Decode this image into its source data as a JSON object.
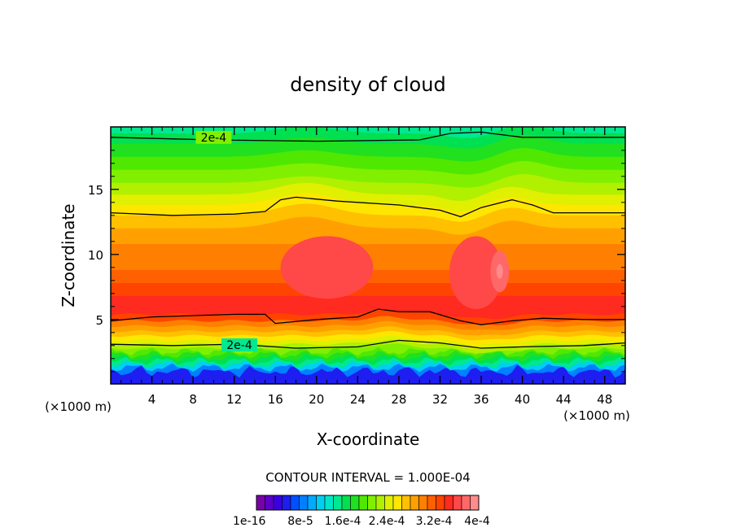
{
  "chart_data": {
    "type": "heatmap",
    "title": "density of cloud",
    "xlabel": "X-coordinate",
    "ylabel": "Z-coordinate",
    "x_unit_left": "(×1000 m)",
    "x_unit_right": "(×1000 m)",
    "xlim": [
      0,
      50
    ],
    "ylim": [
      0.3,
      20
    ],
    "x_ticks": [
      4,
      8,
      12,
      16,
      20,
      24,
      28,
      32,
      36,
      40,
      44,
      48
    ],
    "y_ticks": [
      5,
      10,
      15
    ],
    "contour_interval_text": "CONTOUR INTERVAL = 1.000E-04",
    "contour_labels": [
      "2e-4",
      "2e-4"
    ],
    "colorbar": {
      "tick_labels": [
        "1e-16",
        "8e-5",
        "1.6e-4",
        "2.4e-4",
        "3.2e-4",
        "4e-4"
      ],
      "colors": [
        "#7a00a8",
        "#5a00c8",
        "#3c00e0",
        "#1e1ef0",
        "#0050ff",
        "#0080ff",
        "#00aaff",
        "#00d0f0",
        "#00e6c8",
        "#00e890",
        "#00e050",
        "#20e020",
        "#50e800",
        "#80f000",
        "#b0f000",
        "#e0f000",
        "#ffe600",
        "#ffc000",
        "#ffa000",
        "#ff8000",
        "#ff6000",
        "#ff4400",
        "#ff2a20",
        "#ff4848",
        "#ff6868",
        "#ff8c8c"
      ]
    },
    "levels": [
      0.0,
      1.0,
      1.3,
      1.55,
      1.8,
      2.05,
      2.3,
      2.55,
      2.8,
      3.1,
      3.4,
      3.75,
      4.1,
      4.5,
      4.9,
      5.4,
      6.0,
      6.8,
      7.8,
      8.8,
      10.8,
      12.0,
      13.0,
      13.8,
      14.6,
      15.5,
      16.5,
      17.5,
      18.5,
      19.3,
      20.0
    ],
    "level_value_index": [
      3,
      5,
      7,
      9,
      10,
      11,
      12,
      13,
      14,
      15,
      16,
      17,
      18,
      19,
      21,
      22,
      22,
      21,
      20,
      19,
      18,
      17,
      16,
      15,
      14,
      13,
      12,
      11,
      10,
      9
    ],
    "contour_lines": [
      {
        "label": "2e-4",
        "points": [
          [
            0,
            19.0
          ],
          [
            10,
            18.8
          ],
          [
            20,
            18.7
          ],
          [
            30,
            18.8
          ],
          [
            33,
            19.3
          ],
          [
            36,
            19.4
          ],
          [
            38,
            19.2
          ],
          [
            40,
            19.0
          ],
          [
            50,
            19.0
          ]
        ]
      },
      {
        "label": "",
        "points": [
          [
            0,
            13.2
          ],
          [
            6,
            13.0
          ],
          [
            12,
            13.1
          ],
          [
            15,
            13.3
          ],
          [
            16.5,
            14.2
          ],
          [
            18,
            14.4
          ],
          [
            22,
            14.1
          ],
          [
            28,
            13.8
          ],
          [
            32,
            13.4
          ],
          [
            34,
            12.9
          ],
          [
            36,
            13.6
          ],
          [
            39,
            14.2
          ],
          [
            41,
            13.8
          ],
          [
            43,
            13.2
          ],
          [
            50,
            13.2
          ]
        ]
      },
      {
        "label": "",
        "points": [
          [
            0,
            4.9
          ],
          [
            4,
            5.2
          ],
          [
            8,
            5.3
          ],
          [
            12,
            5.4
          ],
          [
            15,
            5.4
          ],
          [
            16,
            4.7
          ],
          [
            20,
            5.0
          ],
          [
            24,
            5.2
          ],
          [
            26,
            5.8
          ],
          [
            28,
            5.6
          ],
          [
            31,
            5.6
          ],
          [
            34,
            4.9
          ],
          [
            36,
            4.6
          ],
          [
            39,
            4.9
          ],
          [
            42,
            5.1
          ],
          [
            46,
            5.0
          ],
          [
            50,
            5.0
          ]
        ]
      },
      {
        "label": "2e-4",
        "points": [
          [
            0,
            3.1
          ],
          [
            6,
            3.0
          ],
          [
            12,
            3.1
          ],
          [
            18,
            2.8
          ],
          [
            24,
            2.9
          ],
          [
            28,
            3.4
          ],
          [
            32,
            3.2
          ],
          [
            36,
            2.8
          ],
          [
            40,
            2.9
          ],
          [
            46,
            3.0
          ],
          [
            50,
            3.2
          ]
        ]
      }
    ],
    "max_region": {
      "x": 37.8,
      "y": 8.7
    },
    "grid": false,
    "legend": "bottom"
  }
}
